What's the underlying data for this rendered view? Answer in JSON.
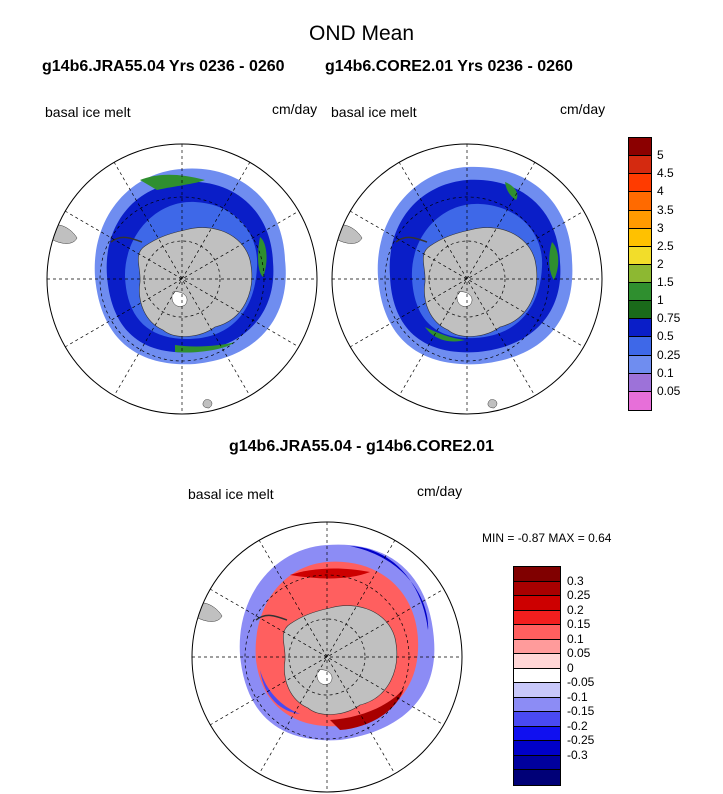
{
  "main_title": "OND Mean",
  "left_panel": {
    "header": "g14b6.JRA55.04  Yrs 0236 - 0260",
    "variable": "basal ice melt",
    "units": "cm/day"
  },
  "right_panel": {
    "header": "g14b6.CORE2.01  Yrs 0236 - 0260",
    "variable": "basal ice melt",
    "units": "cm/day"
  },
  "diff_panel": {
    "header": "g14b6.JRA55.04 - g14b6.CORE2.01",
    "variable": "basal ice melt",
    "units": "cm/day",
    "min_label": "MIN =",
    "min_value": "-0.87",
    "max_label": "MAX =",
    "max_value": "0.64"
  },
  "colorbar_top": {
    "colors": [
      "#e76fd9",
      "#9d72d9",
      "#6f8df0",
      "#3e68e8",
      "#0a1ec8",
      "#1a6a1a",
      "#2f8f2f",
      "#8db832",
      "#f2dd2a",
      "#ffc100",
      "#ff9a00",
      "#ff6a00",
      "#ff3b00",
      "#d42a10",
      "#8b0000"
    ],
    "labels": [
      "0.05",
      "0.1",
      "0.25",
      "0.5",
      "0.75",
      "1",
      "1.5",
      "2",
      "2.5",
      "3",
      "3.5",
      "4",
      "4.5",
      "5"
    ]
  },
  "colorbar_diff": {
    "colors": [
      "#000077",
      "#00009e",
      "#0000c8",
      "#1010f0",
      "#4a4af2",
      "#8c8cf5",
      "#c8c8fa",
      "#ffffff",
      "#ffd6d6",
      "#ff9b9b",
      "#ff5f5f",
      "#f21e1e",
      "#cd0000",
      "#a80000",
      "#800000"
    ],
    "labels": [
      "0.3",
      "0.25",
      "0.2",
      "0.15",
      "0.1",
      "0.05",
      "0",
      "-0.05",
      "-0.1",
      "-0.15",
      "-0.2",
      "-0.25",
      "-0.3"
    ]
  }
}
